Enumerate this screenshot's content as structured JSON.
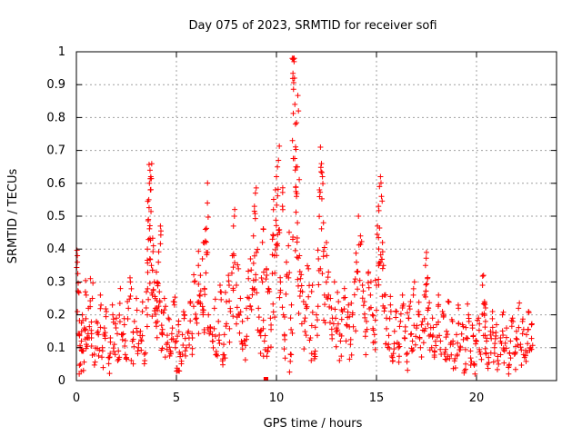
{
  "chart_data": {
    "type": "scatter",
    "title": "Day 075 of 2023, SRMTID for receiver sofi",
    "xlabel": "GPS time / hours",
    "ylabel": "SRMTID / TECUs",
    "xlim": [
      0,
      24
    ],
    "ylim": [
      0,
      1
    ],
    "xticks": [
      "0",
      "5",
      "10",
      "15",
      "20"
    ],
    "xtick_values": [
      0,
      5,
      10,
      15,
      20
    ],
    "yticks": [
      "0",
      "0.1",
      "0.2",
      "0.3",
      "0.4",
      "0.5",
      "0.6",
      "0.7",
      "0.8",
      "0.9",
      "1"
    ],
    "ytick_values": [
      0,
      0.1,
      0.2,
      0.3,
      0.4,
      0.5,
      0.6,
      0.7,
      0.8,
      0.9,
      1.0
    ],
    "grid": true,
    "marker": "+",
    "color": "#ff0000",
    "series": [
      {
        "name": "SRMTID",
        "points": [
          [
            0.05,
            0.38
          ],
          [
            0.05,
            0.36
          ],
          [
            0.1,
            0.27
          ],
          [
            0.15,
            0.14
          ],
          [
            0.2,
            0.05
          ],
          [
            0.25,
            0.12
          ],
          [
            0.3,
            0.2
          ],
          [
            0.35,
            0.09
          ],
          [
            0.4,
            0.16
          ],
          [
            0.45,
            0.27
          ],
          [
            0.5,
            0.11
          ],
          [
            0.6,
            0.22
          ],
          [
            0.7,
            0.31
          ],
          [
            0.75,
            0.13
          ],
          [
            0.8,
            0.25
          ],
          [
            0.9,
            0.08
          ],
          [
            1.0,
            0.18
          ],
          [
            1.1,
            0.14
          ],
          [
            1.2,
            0.26
          ],
          [
            1.3,
            0.1
          ],
          [
            1.4,
            0.16
          ],
          [
            1.5,
            0.21
          ],
          [
            1.6,
            0.07
          ],
          [
            1.7,
            0.13
          ],
          [
            1.8,
            0.23
          ],
          [
            1.9,
            0.11
          ],
          [
            2.0,
            0.19
          ],
          [
            2.1,
            0.09
          ],
          [
            2.2,
            0.28
          ],
          [
            2.3,
            0.14
          ],
          [
            2.4,
            0.17
          ],
          [
            2.5,
            0.07
          ],
          [
            2.6,
            0.22
          ],
          [
            2.7,
            0.3
          ],
          [
            2.8,
            0.12
          ],
          [
            2.9,
            0.18
          ],
          [
            3.0,
            0.25
          ],
          [
            3.1,
            0.1
          ],
          [
            3.2,
            0.15
          ],
          [
            3.3,
            0.21
          ],
          [
            3.4,
            0.08
          ],
          [
            3.5,
            0.27
          ],
          [
            3.55,
            0.4
          ],
          [
            3.6,
            0.49
          ],
          [
            3.62,
            0.55
          ],
          [
            3.65,
            0.6
          ],
          [
            3.68,
            0.64
          ],
          [
            3.7,
            0.58
          ],
          [
            3.72,
            0.62
          ],
          [
            3.75,
            0.35
          ],
          [
            3.8,
            0.26
          ],
          [
            3.85,
            0.41
          ],
          [
            3.9,
            0.3
          ],
          [
            3.95,
            0.22
          ],
          [
            4.0,
            0.33
          ],
          [
            4.05,
            0.18
          ],
          [
            4.1,
            0.36
          ],
          [
            4.15,
            0.27
          ],
          [
            4.2,
            0.47
          ],
          [
            4.25,
            0.21
          ],
          [
            4.3,
            0.14
          ],
          [
            4.4,
            0.25
          ],
          [
            4.5,
            0.11
          ],
          [
            4.6,
            0.19
          ],
          [
            4.7,
            0.09
          ],
          [
            4.8,
            0.16
          ],
          [
            4.9,
            0.23
          ],
          [
            5.0,
            0.12
          ],
          [
            5.05,
            0.03
          ],
          [
            5.1,
            0.17
          ],
          [
            5.2,
            0.08
          ],
          [
            5.3,
            0.14
          ],
          [
            5.4,
            0.2
          ],
          [
            5.5,
            0.1
          ],
          [
            5.6,
            0.15
          ],
          [
            5.7,
            0.24
          ],
          [
            5.8,
            0.13
          ],
          [
            5.9,
            0.3
          ],
          [
            6.0,
            0.19
          ],
          [
            6.1,
            0.35
          ],
          [
            6.15,
            0.26
          ],
          [
            6.2,
            0.32
          ],
          [
            6.3,
            0.37
          ],
          [
            6.35,
            0.42
          ],
          [
            6.4,
            0.28
          ],
          [
            6.45,
            0.46
          ],
          [
            6.5,
            0.39
          ],
          [
            6.55,
            0.54
          ],
          [
            6.6,
            0.2
          ],
          [
            6.7,
            0.16
          ],
          [
            6.8,
            0.12
          ],
          [
            6.9,
            0.22
          ],
          [
            7.0,
            0.08
          ],
          [
            7.1,
            0.18
          ],
          [
            7.2,
            0.27
          ],
          [
            7.3,
            0.06
          ],
          [
            7.4,
            0.14
          ],
          [
            7.5,
            0.24
          ],
          [
            7.6,
            0.32
          ],
          [
            7.7,
            0.21
          ],
          [
            7.8,
            0.38
          ],
          [
            7.85,
            0.47
          ],
          [
            7.9,
            0.5
          ],
          [
            8.0,
            0.29
          ],
          [
            8.1,
            0.34
          ],
          [
            8.2,
            0.25
          ],
          [
            8.3,
            0.18
          ],
          [
            8.4,
            0.12
          ],
          [
            8.5,
            0.22
          ],
          [
            8.6,
            0.31
          ],
          [
            8.7,
            0.37
          ],
          [
            8.8,
            0.28
          ],
          [
            8.85,
            0.44
          ],
          [
            8.9,
            0.53
          ],
          [
            8.95,
            0.57
          ],
          [
            9.0,
            0.39
          ],
          [
            9.1,
            0.22
          ],
          [
            9.2,
            0.15
          ],
          [
            9.3,
            0.3
          ],
          [
            9.35,
            0.46
          ],
          [
            9.4,
            0.12
          ],
          [
            9.5,
            0.34
          ],
          [
            9.55,
            0.09
          ],
          [
            9.6,
            0.28
          ],
          [
            9.7,
            0.19
          ],
          [
            9.8,
            0.43
          ],
          [
            9.85,
            0.52
          ],
          [
            9.9,
            0.38
          ],
          [
            9.95,
            0.58
          ],
          [
            10.0,
            0.62
          ],
          [
            10.05,
            0.65
          ],
          [
            10.1,
            0.67
          ],
          [
            10.15,
            0.45
          ],
          [
            10.2,
            0.3
          ],
          [
            10.3,
            0.53
          ],
          [
            10.35,
            0.2
          ],
          [
            10.4,
            0.14
          ],
          [
            10.5,
            0.36
          ],
          [
            10.6,
            0.41
          ],
          [
            10.7,
            0.08
          ],
          [
            10.75,
            0.23
          ],
          [
            10.8,
            0.73
          ],
          [
            10.85,
            0.98
          ],
          [
            10.88,
            0.97
          ],
          [
            10.9,
            0.92
          ],
          [
            10.92,
            0.84
          ],
          [
            10.95,
            0.78
          ],
          [
            10.98,
            0.65
          ],
          [
            11.0,
            0.56
          ],
          [
            11.05,
            0.48
          ],
          [
            11.1,
            0.82
          ],
          [
            11.15,
            0.38
          ],
          [
            11.2,
            0.31
          ],
          [
            11.3,
            0.27
          ],
          [
            11.4,
            0.18
          ],
          [
            11.5,
            0.22
          ],
          [
            11.6,
            0.34
          ],
          [
            11.7,
            0.13
          ],
          [
            11.8,
            0.29
          ],
          [
            11.9,
            0.08
          ],
          [
            12.0,
            0.2
          ],
          [
            12.1,
            0.37
          ],
          [
            12.15,
            0.58
          ],
          [
            12.2,
            0.71
          ],
          [
            12.25,
            0.66
          ],
          [
            12.3,
            0.62
          ],
          [
            12.35,
            0.48
          ],
          [
            12.4,
            0.26
          ],
          [
            12.5,
            0.42
          ],
          [
            12.6,
            0.33
          ],
          [
            12.7,
            0.25
          ],
          [
            12.8,
            0.19
          ],
          [
            12.9,
            0.3
          ],
          [
            13.0,
            0.16
          ],
          [
            13.1,
            0.24
          ],
          [
            13.2,
            0.12
          ],
          [
            13.3,
            0.21
          ],
          [
            13.4,
            0.28
          ],
          [
            13.5,
            0.17
          ],
          [
            13.6,
            0.23
          ],
          [
            13.7,
            0.11
          ],
          [
            13.8,
            0.2
          ],
          [
            13.9,
            0.3
          ],
          [
            14.0,
            0.36
          ],
          [
            14.1,
            0.5
          ],
          [
            14.2,
            0.44
          ],
          [
            14.3,
            0.29
          ],
          [
            14.4,
            0.24
          ],
          [
            14.5,
            0.18
          ],
          [
            14.6,
            0.33
          ],
          [
            14.7,
            0.26
          ],
          [
            14.8,
            0.2
          ],
          [
            14.9,
            0.14
          ],
          [
            15.0,
            0.29
          ],
          [
            15.05,
            0.47
          ],
          [
            15.1,
            0.53
          ],
          [
            15.15,
            0.59
          ],
          [
            15.2,
            0.62
          ],
          [
            15.25,
            0.56
          ],
          [
            15.3,
            0.42
          ],
          [
            15.35,
            0.35
          ],
          [
            15.4,
            0.26
          ],
          [
            15.5,
            0.19
          ],
          [
            15.6,
            0.11
          ],
          [
            15.7,
            0.23
          ],
          [
            15.8,
            0.07
          ],
          [
            15.9,
            0.15
          ],
          [
            16.0,
            0.21
          ],
          [
            16.1,
            0.1
          ],
          [
            16.2,
            0.18
          ],
          [
            16.3,
            0.26
          ],
          [
            16.4,
            0.13
          ],
          [
            16.5,
            0.08
          ],
          [
            16.6,
            0.19
          ],
          [
            16.7,
            0.24
          ],
          [
            16.8,
            0.12
          ],
          [
            16.9,
            0.3
          ],
          [
            17.0,
            0.16
          ],
          [
            17.1,
            0.21
          ],
          [
            17.2,
            0.1
          ],
          [
            17.3,
            0.18
          ],
          [
            17.4,
            0.26
          ],
          [
            17.45,
            0.35
          ],
          [
            17.5,
            0.39
          ],
          [
            17.55,
            0.31
          ],
          [
            17.6,
            0.22
          ],
          [
            17.7,
            0.14
          ],
          [
            17.8,
            0.19
          ],
          [
            17.9,
            0.09
          ],
          [
            18.0,
            0.17
          ],
          [
            18.1,
            0.26
          ],
          [
            18.2,
            0.12
          ],
          [
            18.3,
            0.21
          ],
          [
            18.4,
            0.08
          ],
          [
            18.5,
            0.15
          ],
          [
            18.6,
            0.24
          ],
          [
            18.7,
            0.11
          ],
          [
            18.8,
            0.18
          ],
          [
            18.9,
            0.06
          ],
          [
            19.0,
            0.14
          ],
          [
            19.1,
            0.22
          ],
          [
            19.2,
            0.1
          ],
          [
            19.3,
            0.17
          ],
          [
            19.4,
            0.03
          ],
          [
            19.5,
            0.13
          ],
          [
            19.6,
            0.2
          ],
          [
            19.7,
            0.09
          ],
          [
            19.8,
            0.16
          ],
          [
            19.9,
            0.05
          ],
          [
            20.0,
            0.12
          ],
          [
            20.1,
            0.19
          ],
          [
            20.2,
            0.08
          ],
          [
            20.3,
            0.29
          ],
          [
            20.35,
            0.32
          ],
          [
            20.4,
            0.24
          ],
          [
            20.45,
            0.18
          ],
          [
            20.5,
            0.12
          ],
          [
            20.6,
            0.07
          ],
          [
            20.7,
            0.15
          ],
          [
            20.8,
            0.21
          ],
          [
            20.9,
            0.1
          ],
          [
            21.0,
            0.17
          ],
          [
            21.1,
            0.05
          ],
          [
            21.2,
            0.13
          ],
          [
            21.3,
            0.2
          ],
          [
            21.4,
            0.09
          ],
          [
            21.5,
            0.16
          ],
          [
            21.6,
            0.04
          ],
          [
            21.7,
            0.12
          ],
          [
            21.8,
            0.19
          ],
          [
            21.9,
            0.08
          ],
          [
            22.0,
            0.15
          ],
          [
            22.1,
            0.22
          ],
          [
            22.2,
            0.11
          ],
          [
            22.3,
            0.18
          ],
          [
            22.4,
            0.07
          ],
          [
            22.5,
            0.14
          ],
          [
            22.6,
            0.21
          ],
          [
            22.7,
            0.1
          ],
          [
            22.75,
            0.17
          ]
        ]
      }
    ],
    "zero_markers": [
      9.45,
      9.5
    ]
  }
}
